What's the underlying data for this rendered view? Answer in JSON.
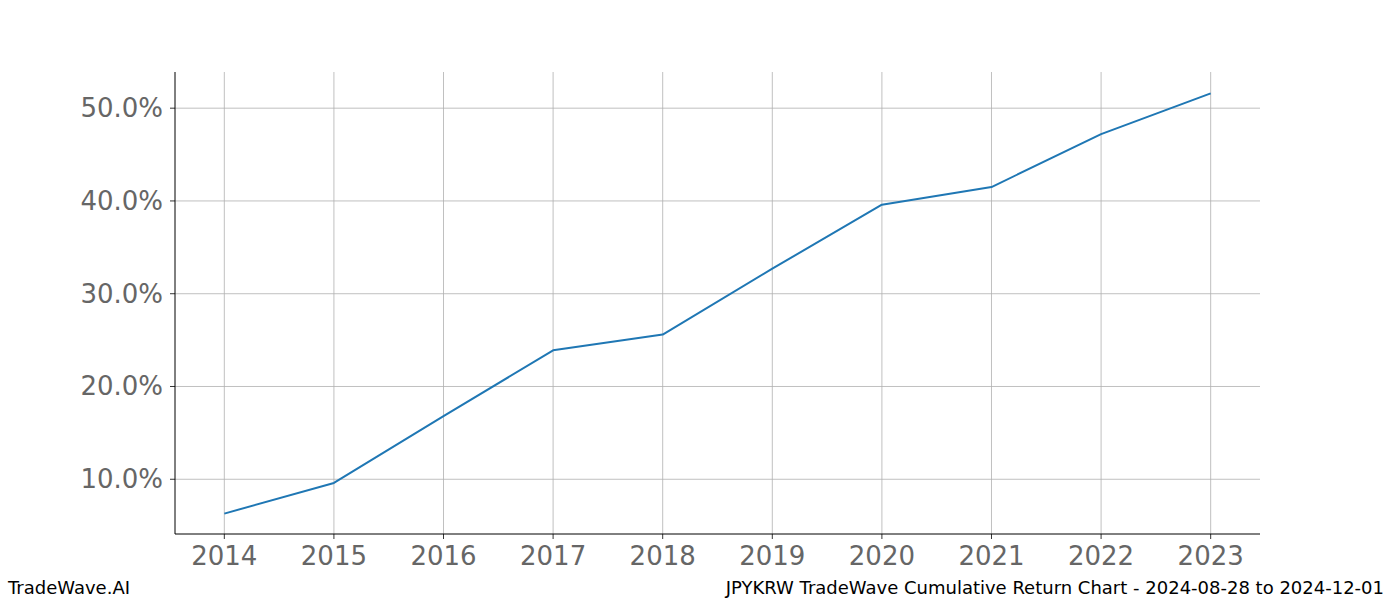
{
  "chart_data": {
    "type": "line",
    "title": "JPYKRW TradeWave Cumulative Return Chart - 2024-08-28 to 2024-12-01",
    "watermark": "TradeWave.AI",
    "x": [
      2014,
      2015,
      2016,
      2017,
      2018,
      2019,
      2020,
      2021,
      2022,
      2023
    ],
    "series": [
      {
        "name": "JPYKRW",
        "color": "#1f77b4",
        "values": [
          6.3,
          9.6,
          16.8,
          23.9,
          25.6,
          32.7,
          39.6,
          41.5,
          47.2,
          51.6
        ]
      }
    ],
    "xlim": [
      2013.55,
      2023.45
    ],
    "xticks": [
      2014,
      2015,
      2016,
      2017,
      2018,
      2019,
      2020,
      2021,
      2022,
      2023
    ],
    "ylim": [
      4.1,
      53.9
    ],
    "yticks": [
      {
        "value": 10,
        "label": "10.0%"
      },
      {
        "value": 20,
        "label": "20.0%"
      },
      {
        "value": 30,
        "label": "30.0%"
      },
      {
        "value": 40,
        "label": "40.0%"
      },
      {
        "value": 50,
        "label": "50.0%"
      }
    ],
    "grid": true
  }
}
